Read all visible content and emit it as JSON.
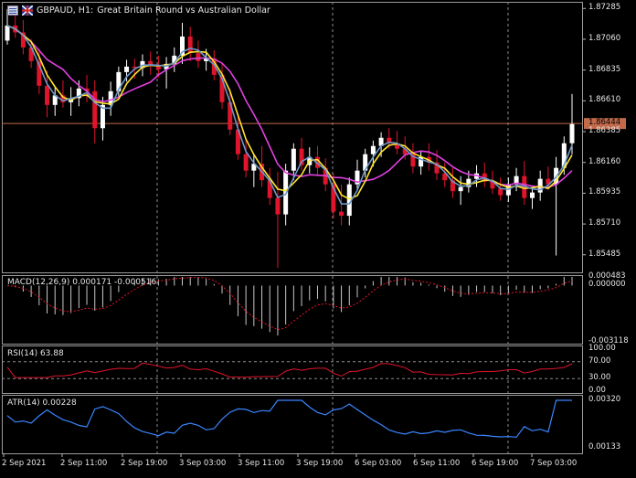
{
  "header": {
    "symbol": "GBPAUD, H1:",
    "description": "Great Britain Round vs Australian Dollar"
  },
  "colors": {
    "background": "#000000",
    "grid": "#8c8c8c",
    "candle_up": "#ffffff",
    "candle_down": "#e0142b",
    "ma_fast": "#ffe62d",
    "ma_mid": "#6e97c8",
    "ma_slow": "#e040e0",
    "price_line": "#c36a4a",
    "macd_hist": "#c8c8c8",
    "macd_signal": "#e0142b",
    "rsi": "#e0142b",
    "atr": "#3a86ff"
  },
  "price_axis": {
    "ticks": [
      "1.87285",
      "1.87060",
      "1.86835",
      "1.86610",
      "1.86385",
      "1.86160",
      "1.85935",
      "1.85710",
      "1.85485"
    ],
    "current": "1.86444",
    "range": [
      1.8537,
      1.8732
    ],
    "current_value": 1.86444
  },
  "time_axis": {
    "labels": [
      "2 Sep 2021",
      "2 Sep 11:00",
      "2 Sep 19:00",
      "3 Sep 03:00",
      "3 Sep 11:00",
      "3 Sep 19:00",
      "6 Sep 03:00",
      "6 Sep 11:00",
      "6 Sep 19:00",
      "7 Sep 03:00"
    ]
  },
  "macd": {
    "title": "MACD(12,26,9) 0.000171 -0.000516",
    "ticks": [
      "0.000483",
      "0.000000",
      "-0.003118"
    ],
    "range": [
      -0.00312,
      0.00048
    ]
  },
  "rsi": {
    "title": "RSI(14) 63.88",
    "ticks": [
      "100.00",
      "70.00",
      "30.00",
      "0.00"
    ],
    "levels": [
      70,
      30
    ]
  },
  "atr": {
    "title": "ATR(14) 0.00228",
    "ticks": [
      "0.00320",
      "0.00133"
    ],
    "range": [
      0.00133,
      0.0032
    ]
  },
  "chart_data": {
    "type": "candlestick",
    "series_note": "GBPAUD H1 candles",
    "candles": [
      [
        1.8705,
        1.8728,
        1.8702,
        1.8716
      ],
      [
        1.8716,
        1.8724,
        1.8707,
        1.8711
      ],
      [
        1.8711,
        1.872,
        1.8695,
        1.87
      ],
      [
        1.87,
        1.8706,
        1.8685,
        1.869
      ],
      [
        1.869,
        1.8699,
        1.8666,
        1.8672
      ],
      [
        1.8672,
        1.8683,
        1.8649,
        1.8658
      ],
      [
        1.8658,
        1.8671,
        1.865,
        1.8665
      ],
      [
        1.8665,
        1.8676,
        1.8656,
        1.866
      ],
      [
        1.866,
        1.8671,
        1.865,
        1.8663
      ],
      [
        1.8663,
        1.8676,
        1.8657,
        1.867
      ],
      [
        1.867,
        1.868,
        1.866,
        1.8668
      ],
      [
        1.8668,
        1.8676,
        1.863,
        1.8641
      ],
      [
        1.8641,
        1.8664,
        1.8632,
        1.8658
      ],
      [
        1.8658,
        1.8675,
        1.865,
        1.8668
      ],
      [
        1.8668,
        1.8686,
        1.8663,
        1.8682
      ],
      [
        1.8682,
        1.8691,
        1.8675,
        1.8686
      ],
      [
        1.8686,
        1.8692,
        1.8677,
        1.8685
      ],
      [
        1.8685,
        1.8695,
        1.8679,
        1.869
      ],
      [
        1.869,
        1.8697,
        1.868,
        1.8687
      ],
      [
        1.8687,
        1.8694,
        1.8678,
        1.8684
      ],
      [
        1.8684,
        1.8693,
        1.867,
        1.8688
      ],
      [
        1.8688,
        1.87,
        1.8682,
        1.8694
      ],
      [
        1.8694,
        1.8718,
        1.8688,
        1.8708
      ],
      [
        1.8708,
        1.8715,
        1.869,
        1.8696
      ],
      [
        1.8696,
        1.8705,
        1.8685,
        1.869
      ],
      [
        1.869,
        1.8699,
        1.8683,
        1.8692
      ],
      [
        1.8692,
        1.8698,
        1.8676,
        1.868
      ],
      [
        1.868,
        1.8689,
        1.8655,
        1.866
      ],
      [
        1.866,
        1.867,
        1.8636,
        1.864
      ],
      [
        1.864,
        1.865,
        1.8618,
        1.8622
      ],
      [
        1.8622,
        1.8633,
        1.8605,
        1.861
      ],
      [
        1.861,
        1.8622,
        1.8598,
        1.8615
      ],
      [
        1.8615,
        1.8628,
        1.8598,
        1.8603
      ],
      [
        1.8603,
        1.8612,
        1.8585,
        1.859
      ],
      [
        1.859,
        1.8609,
        1.8539,
        1.8578
      ],
      [
        1.8578,
        1.8615,
        1.857,
        1.861
      ],
      [
        1.861,
        1.863,
        1.8603,
        1.8626
      ],
      [
        1.8626,
        1.8634,
        1.861,
        1.8614
      ],
      [
        1.8614,
        1.8627,
        1.8608,
        1.862
      ],
      [
        1.862,
        1.8628,
        1.8606,
        1.8612
      ],
      [
        1.8612,
        1.8619,
        1.8595,
        1.86
      ],
      [
        1.86,
        1.8608,
        1.8575,
        1.858
      ],
      [
        1.858,
        1.86,
        1.857,
        1.8577
      ],
      [
        1.8577,
        1.8605,
        1.857,
        1.86
      ],
      [
        1.86,
        1.8618,
        1.8595,
        1.861
      ],
      [
        1.861,
        1.8626,
        1.8605,
        1.8622
      ],
      [
        1.8622,
        1.8632,
        1.8613,
        1.8628
      ],
      [
        1.8628,
        1.8638,
        1.862,
        1.8634
      ],
      [
        1.8634,
        1.8641,
        1.8626,
        1.863
      ],
      [
        1.863,
        1.8639,
        1.8622,
        1.8626
      ],
      [
        1.8626,
        1.8635,
        1.8618,
        1.8622
      ],
      [
        1.8622,
        1.863,
        1.8608,
        1.8613
      ],
      [
        1.8613,
        1.8624,
        1.8607,
        1.862
      ],
      [
        1.862,
        1.863,
        1.861,
        1.8616
      ],
      [
        1.8616,
        1.8625,
        1.8603,
        1.8608
      ],
      [
        1.8608,
        1.8616,
        1.8598,
        1.8603
      ],
      [
        1.8603,
        1.8612,
        1.859,
        1.8595
      ],
      [
        1.8595,
        1.8606,
        1.8585,
        1.8598
      ],
      [
        1.8598,
        1.861,
        1.8594,
        1.8604
      ],
      [
        1.8604,
        1.8614,
        1.8598,
        1.8608
      ],
      [
        1.8608,
        1.8616,
        1.8598,
        1.8602
      ],
      [
        1.8602,
        1.861,
        1.8593,
        1.8597
      ],
      [
        1.8597,
        1.8605,
        1.8588,
        1.8592
      ],
      [
        1.8592,
        1.8605,
        1.8587,
        1.86
      ],
      [
        1.86,
        1.8612,
        1.8595,
        1.8606
      ],
      [
        1.8606,
        1.8617,
        1.8585,
        1.859
      ],
      [
        1.859,
        1.8598,
        1.8582,
        1.8594
      ],
      [
        1.8594,
        1.861,
        1.8588,
        1.8604
      ],
      [
        1.8604,
        1.8613,
        1.8596,
        1.86
      ],
      [
        1.86,
        1.862,
        1.8548,
        1.8612
      ],
      [
        1.8612,
        1.8635,
        1.8607,
        1.863
      ],
      [
        1.863,
        1.8666,
        1.8622,
        1.8644
      ]
    ]
  }
}
